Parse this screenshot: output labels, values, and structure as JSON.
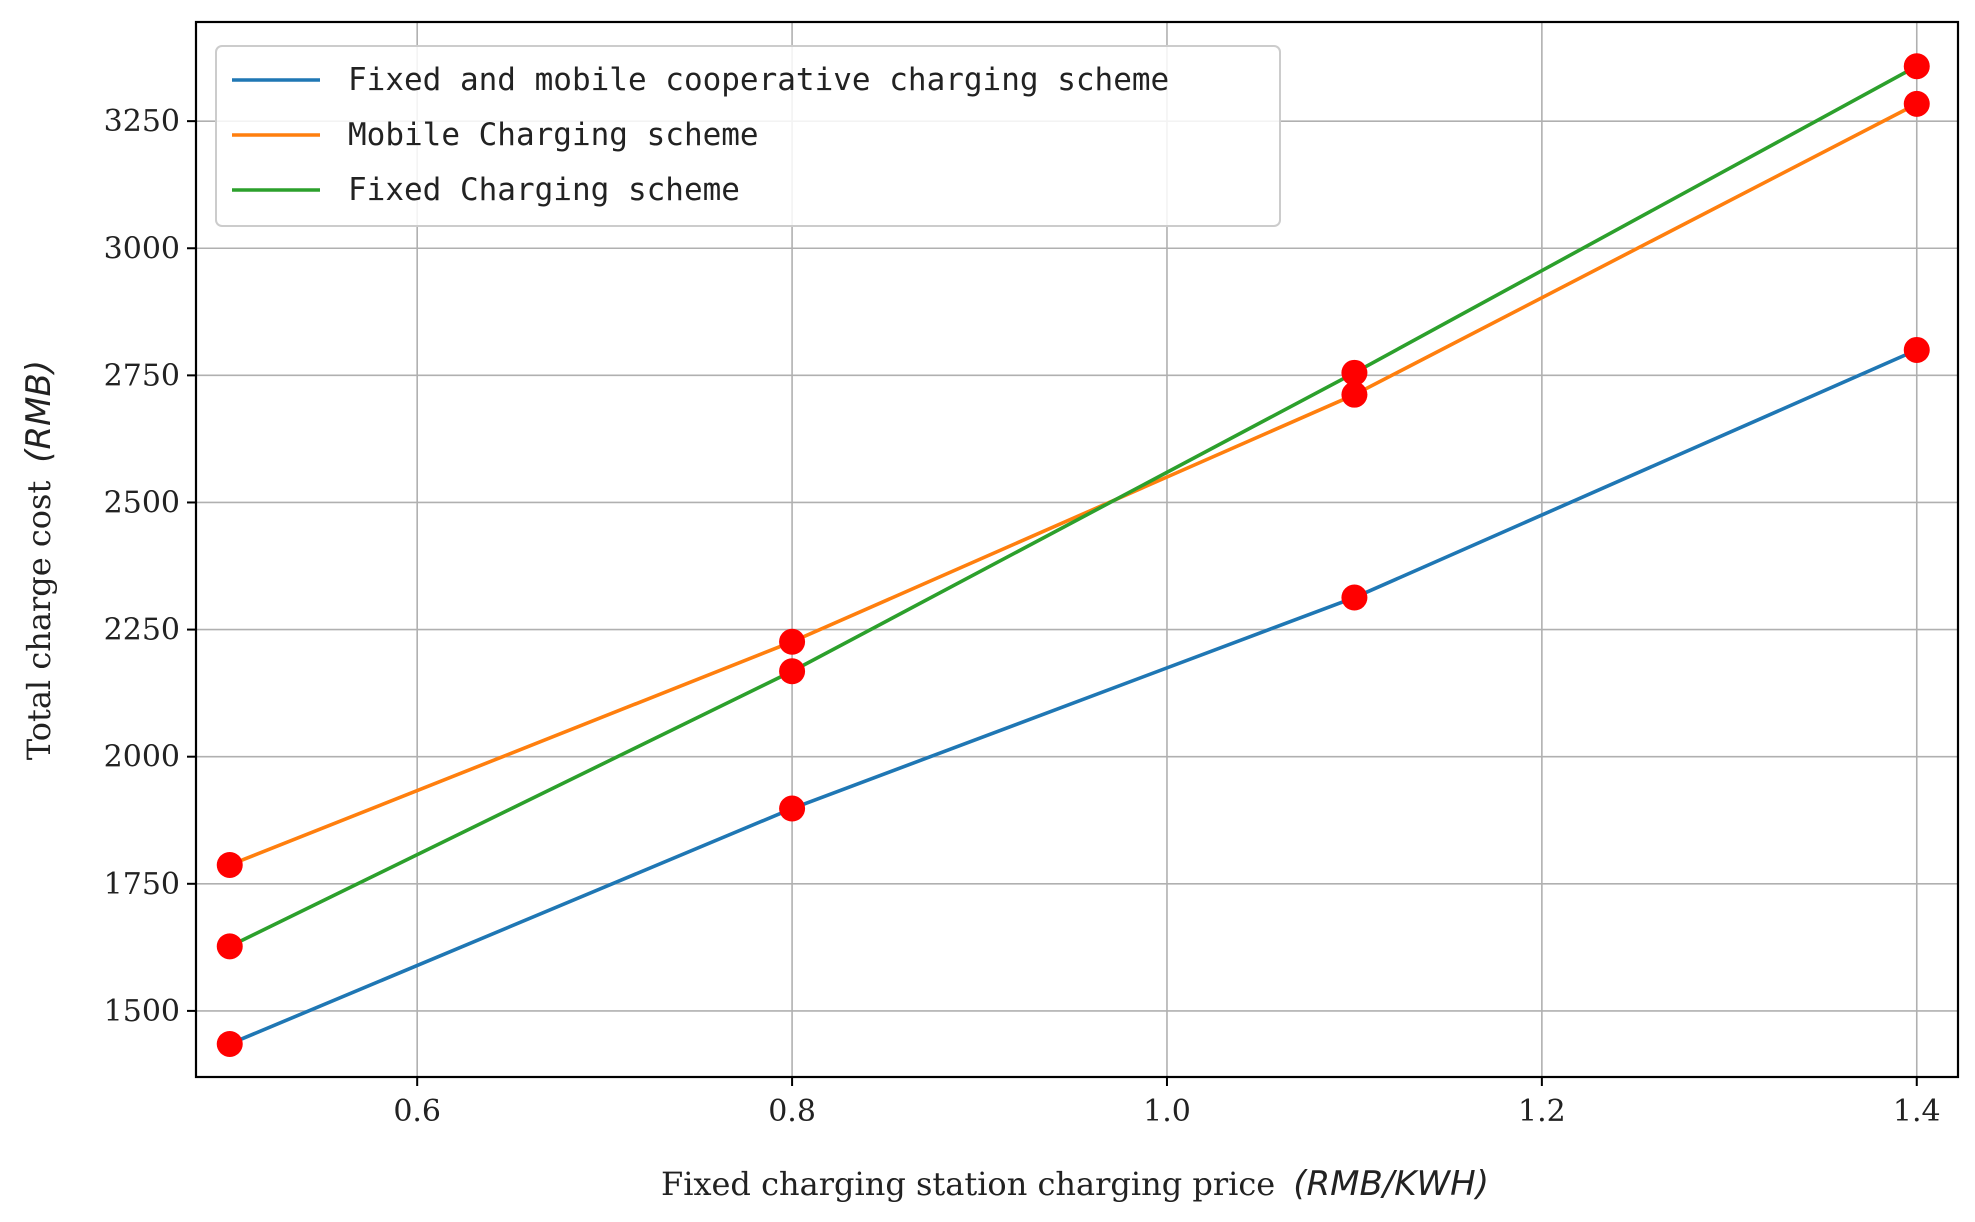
{
  "chart_data": {
    "type": "line",
    "xlabel": "Fixed charging station charging price",
    "xlabel_unit": "(RMB/KWH)",
    "ylabel": "Total charge cost",
    "ylabel_unit": "(RMB)",
    "xlim": [
      0.482,
      1.422
    ],
    "ylim": [
      1370,
      3445
    ],
    "x_ticks": [
      0.6,
      0.8,
      1.0,
      1.2,
      1.4
    ],
    "x_tick_labels": [
      "0.6",
      "0.8",
      "1.0",
      "1.2",
      "1.4"
    ],
    "y_ticks": [
      1500,
      1750,
      2000,
      2250,
      2500,
      2750,
      3000,
      3250
    ],
    "y_tick_labels": [
      "1500",
      "1750",
      "2000",
      "2250",
      "2500",
      "2750",
      "3000",
      "3250"
    ],
    "grid": true,
    "legend_position": "top-left",
    "marker_color": "#ff0000",
    "x": [
      0.5,
      0.8,
      1.1,
      1.4
    ],
    "series": [
      {
        "name": "Fixed and mobile cooperative charging scheme",
        "color": "#1f77b4",
        "values": [
          1435,
          1898,
          2313,
          2800
        ]
      },
      {
        "name": "Mobile Charging scheme",
        "color": "#ff7f0e",
        "values": [
          1787,
          2226,
          2712,
          3284
        ]
      },
      {
        "name": "Fixed Charging scheme",
        "color": "#2ca02c",
        "values": [
          1627,
          2168,
          2755,
          3358
        ]
      }
    ]
  }
}
